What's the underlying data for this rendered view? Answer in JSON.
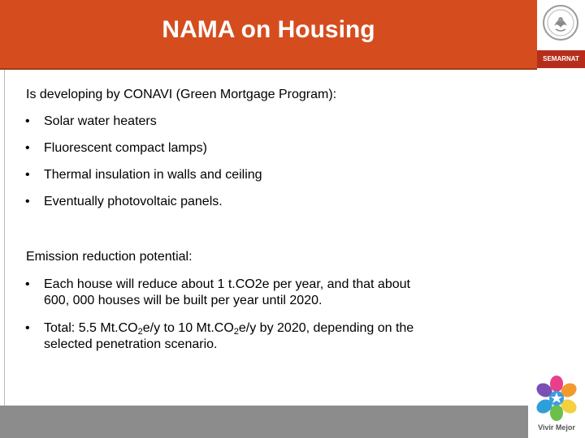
{
  "slide": {
    "title": "NAMA on Housing"
  },
  "logos": {
    "top_label": "SEMARNAT",
    "bottom_label": "Vivir Mejor"
  },
  "section1": {
    "heading": "Is developing by CONAVI (Green Mortgage Program):",
    "bullets": [
      "Solar water heaters",
      "Fluorescent compact lamps)",
      "Thermal insulation in walls and ceiling",
      "Eventually photovoltaic panels."
    ]
  },
  "section2": {
    "heading": "Emission reduction potential:",
    "bullet1": {
      "line1": "Each house will reduce about 1 t.CO2e per year, and that about",
      "line2": "600, 000 houses will be built per year until 2020."
    },
    "bullet2": {
      "p1": "Total: 5.5 Mt.CO",
      "sub1": "2",
      "p2": "e/y to 10 Mt.CO",
      "sub2": "2",
      "p3": "e/y by 2020, depending on the",
      "line2": "selected penetration scenario."
    }
  },
  "colors": {
    "title_bar": "#d54d1e",
    "semarnat_bar": "#b52e1c",
    "bottom_bar": "#8c8c8c"
  },
  "icons": {
    "bullet": "•",
    "seal": "mexico-coat-of-arms-icon",
    "flower": "vivir-mejor-flower-icon"
  }
}
